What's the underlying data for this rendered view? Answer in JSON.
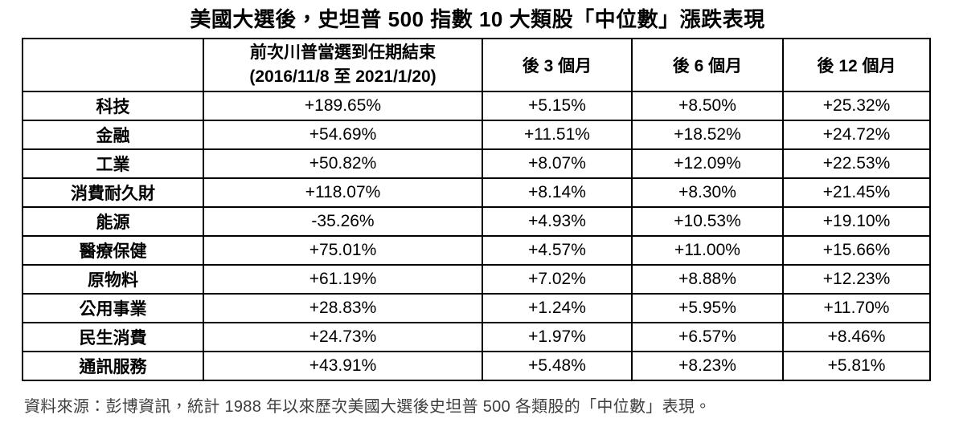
{
  "title": "美國大選後，史坦普 500 指數 10 大類股「中位數」漲跌表現",
  "chart_data": {
    "type": "table",
    "title": "美國大選後，史坦普 500 指數 10 大類股「中位數」漲跌表現",
    "header": {
      "sector": "",
      "trump_term_line1": "前次川普當選到任期結束",
      "trump_term_line2": "(2016/11/8 至 2021/1/20)",
      "after_3m": "後 3 個月",
      "after_6m": "後 6 個月",
      "after_12m": "後 12 個月"
    },
    "rows": [
      {
        "sector": "科技",
        "trump_term": "+189.65%",
        "after_3m": "+5.15%",
        "after_6m": "+8.50%",
        "after_12m": "+25.32%"
      },
      {
        "sector": "金融",
        "trump_term": "+54.69%",
        "after_3m": "+11.51%",
        "after_6m": "+18.52%",
        "after_12m": "+24.72%"
      },
      {
        "sector": "工業",
        "trump_term": "+50.82%",
        "after_3m": "+8.07%",
        "after_6m": "+12.09%",
        "after_12m": "+22.53%"
      },
      {
        "sector": "消費耐久財",
        "trump_term": "+118.07%",
        "after_3m": "+8.14%",
        "after_6m": "+8.30%",
        "after_12m": "+21.45%"
      },
      {
        "sector": "能源",
        "trump_term": "-35.26%",
        "after_3m": "+4.93%",
        "after_6m": "+10.53%",
        "after_12m": "+19.10%"
      },
      {
        "sector": "醫療保健",
        "trump_term": "+75.01%",
        "after_3m": "+4.57%",
        "after_6m": "+11.00%",
        "after_12m": "+15.66%"
      },
      {
        "sector": "原物料",
        "trump_term": "+61.19%",
        "after_3m": "+7.02%",
        "after_6m": "+8.88%",
        "after_12m": "+12.23%"
      },
      {
        "sector": "公用事業",
        "trump_term": "+28.83%",
        "after_3m": "+1.24%",
        "after_6m": "+5.95%",
        "after_12m": "+11.70%"
      },
      {
        "sector": "民生消費",
        "trump_term": "+24.73%",
        "after_3m": "+1.97%",
        "after_6m": "+6.57%",
        "after_12m": "+8.46%"
      },
      {
        "sector": "通訊服務",
        "trump_term": "+43.91%",
        "after_3m": "+5.48%",
        "after_6m": "+8.23%",
        "after_12m": "+5.81%"
      }
    ]
  },
  "footer": {
    "source": "資料來源：彭博資訊，統計 1988 年以來歷次美國大選後史坦普 500 各類股的「中位數」表現。"
  },
  "colors": {
    "background": "#ffffff",
    "border": "#000000",
    "text": "#000000",
    "footer_text": "#3d3d3d"
  }
}
